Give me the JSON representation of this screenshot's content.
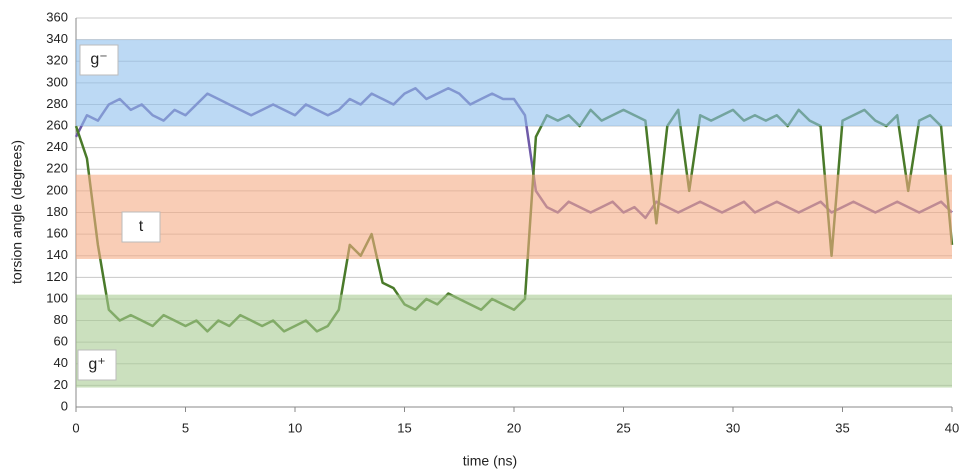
{
  "chart_data": {
    "type": "line",
    "x_label": "time (ns)",
    "y_label": "torsion angle (degrees)",
    "xlim": [
      0,
      40
    ],
    "xticks": [
      0,
      5,
      10,
      15,
      20,
      25,
      30,
      35,
      40
    ],
    "ylim": [
      0,
      360
    ],
    "yticks": [
      0,
      20,
      40,
      60,
      80,
      100,
      120,
      140,
      160,
      180,
      200,
      220,
      240,
      260,
      280,
      300,
      320,
      340,
      360
    ],
    "grid": true,
    "x": [
      0,
      0.5,
      1,
      1.5,
      2,
      2.5,
      3,
      3.5,
      4,
      4.5,
      5,
      5.5,
      6,
      6.5,
      7,
      7.5,
      8,
      8.5,
      9,
      9.5,
      10,
      10.5,
      11,
      11.5,
      12,
      12.5,
      13,
      13.5,
      14,
      14.5,
      15,
      15.5,
      16,
      16.5,
      17,
      17.5,
      18,
      18.5,
      19,
      19.5,
      20,
      20.5,
      21,
      21.5,
      22,
      22.5,
      23,
      23.5,
      24,
      24.5,
      25,
      25.5,
      26,
      26.5,
      27,
      27.5,
      28,
      28.5,
      29,
      29.5,
      30,
      30.5,
      31,
      31.5,
      32,
      32.5,
      33,
      33.5,
      34,
      34.5,
      35,
      35.5,
      36,
      36.5,
      37,
      37.5,
      38,
      38.5,
      39,
      39.5,
      40
    ],
    "series": [
      {
        "color": "#6f5aa8",
        "values": [
          250,
          270,
          265,
          280,
          285,
          275,
          280,
          270,
          265,
          275,
          270,
          280,
          290,
          285,
          280,
          275,
          270,
          275,
          280,
          275,
          270,
          280,
          275,
          270,
          275,
          285,
          280,
          290,
          285,
          280,
          290,
          295,
          285,
          290,
          295,
          290,
          280,
          285,
          290,
          285,
          285,
          270,
          200,
          185,
          180,
          190,
          185,
          180,
          185,
          190,
          180,
          185,
          175,
          190,
          185,
          180,
          185,
          190,
          185,
          180,
          185,
          190,
          180,
          185,
          190,
          185,
          180,
          185,
          190,
          180,
          185,
          190,
          185,
          180,
          185,
          190,
          185,
          180,
          185,
          190,
          180
        ]
      },
      {
        "color": "#4a7a2a",
        "values": [
          260,
          230,
          150,
          90,
          80,
          85,
          80,
          75,
          85,
          80,
          75,
          80,
          70,
          80,
          75,
          85,
          80,
          75,
          80,
          70,
          75,
          80,
          70,
          75,
          90,
          150,
          140,
          160,
          115,
          110,
          95,
          90,
          100,
          95,
          105,
          100,
          95,
          90,
          100,
          95,
          90,
          100,
          250,
          270,
          265,
          270,
          260,
          275,
          265,
          270,
          275,
          270,
          265,
          170,
          260,
          275,
          200,
          270,
          265,
          270,
          275,
          265,
          270,
          265,
          270,
          260,
          275,
          265,
          260,
          140,
          265,
          270,
          275,
          265,
          260,
          270,
          200,
          265,
          270,
          260,
          150
        ]
      }
    ],
    "bands": [
      {
        "label": "g⁻",
        "range": [
          260,
          340
        ],
        "color": "#8fc0ec"
      },
      {
        "label": "t",
        "range": [
          137,
          215
        ],
        "color": "#f5ac85"
      },
      {
        "label": "g⁺",
        "range": [
          18,
          104
        ],
        "color": "#a9cc92"
      }
    ]
  }
}
